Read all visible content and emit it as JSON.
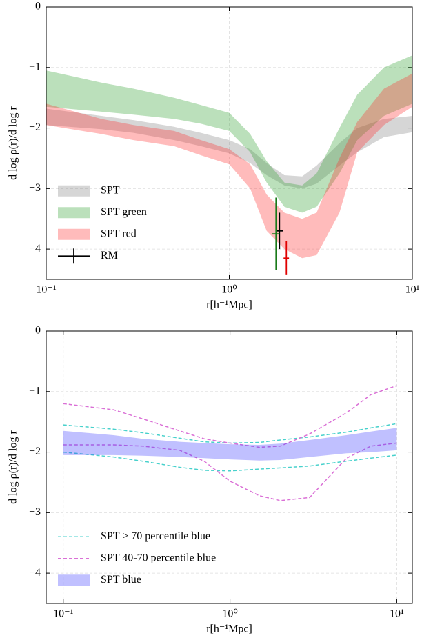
{
  "chart_data": [
    {
      "type": "area",
      "xlabel": "r[h⁻¹Mpc]",
      "ylabel": "d log ρ(r)/d log r",
      "xscale": "log",
      "xlim": [
        0.1,
        10
      ],
      "ylim": [
        -4.5,
        0
      ],
      "xticks": [
        {
          "value": 0.1,
          "label": "10⁻¹"
        },
        {
          "value": 1,
          "label": "10⁰"
        },
        {
          "value": 10,
          "label": "10¹"
        }
      ],
      "yticks": [
        0,
        {
          "value": -1,
          "label": "−1"
        },
        {
          "value": -2,
          "label": "−2"
        },
        {
          "value": -3,
          "label": "−3"
        },
        {
          "value": -4,
          "label": "−4"
        }
      ],
      "grid": true,
      "legend": "lower left",
      "series": [
        {
          "name": "SPT",
          "style": "band",
          "color": "#7f7f7f",
          "x": [
            0.1,
            0.2,
            0.3,
            0.5,
            0.7,
            1,
            1.3,
            1.6,
            2,
            2.5,
            3,
            4,
            5,
            7,
            10
          ],
          "lower": [
            -1.95,
            -2.02,
            -2.08,
            -2.2,
            -2.3,
            -2.42,
            -2.58,
            -2.78,
            -2.95,
            -3.0,
            -2.92,
            -2.62,
            -2.4,
            -2.15,
            -2.07
          ],
          "upper": [
            -1.68,
            -1.8,
            -1.87,
            -1.98,
            -2.08,
            -2.2,
            -2.35,
            -2.58,
            -2.78,
            -2.8,
            -2.62,
            -2.25,
            -2.0,
            -1.85,
            -1.8
          ]
        },
        {
          "name": "SPT green",
          "style": "band",
          "color": "#2ca02c",
          "x": [
            0.1,
            0.2,
            0.3,
            0.5,
            0.7,
            1,
            1.3,
            1.6,
            2,
            2.5,
            3,
            4,
            5,
            7,
            10
          ],
          "lower": [
            -1.65,
            -1.73,
            -1.78,
            -1.85,
            -1.93,
            -2.05,
            -2.4,
            -2.9,
            -3.3,
            -3.4,
            -3.3,
            -2.75,
            -2.2,
            -1.8,
            -1.6
          ],
          "upper": [
            -1.05,
            -1.25,
            -1.35,
            -1.5,
            -1.62,
            -1.75,
            -2.1,
            -2.55,
            -2.9,
            -2.95,
            -2.75,
            -2.0,
            -1.45,
            -1.0,
            -0.8
          ]
        },
        {
          "name": "SPT red",
          "style": "band",
          "color": "#ff2a2a",
          "x": [
            0.1,
            0.2,
            0.3,
            0.5,
            0.7,
            1,
            1.3,
            1.6,
            2,
            2.5,
            3,
            4,
            5,
            7,
            10
          ],
          "lower": [
            -1.95,
            -2.1,
            -2.2,
            -2.3,
            -2.45,
            -2.6,
            -3.0,
            -3.7,
            -4.0,
            -4.15,
            -4.1,
            -3.4,
            -2.4,
            -1.95,
            -1.65
          ],
          "upper": [
            -1.6,
            -1.85,
            -1.95,
            -2.05,
            -2.2,
            -2.35,
            -2.6,
            -3.1,
            -3.4,
            -3.5,
            -3.4,
            -2.5,
            -1.9,
            -1.35,
            -1.1
          ]
        },
        {
          "name": "RM",
          "style": "errorbar",
          "color": "#000000",
          "colors": [
            "#000000",
            "#1a7a1a",
            "#e00000"
          ],
          "x": [
            1.88,
            1.8,
            2.05
          ],
          "values": [
            -3.7,
            -3.75,
            -4.15
          ],
          "yerr": [
            0.3,
            0.6,
            0.28
          ],
          "xerr": [
            0.08,
            0.08,
            0.07
          ]
        }
      ]
    },
    {
      "type": "area",
      "xlabel": "r[h⁻¹Mpc]",
      "ylabel": "d log ρ(r)/d log r",
      "xscale": "log",
      "xlim": [
        0.079,
        12.4
      ],
      "ylim": [
        -4.5,
        0
      ],
      "xticks": [
        {
          "value": 0.1,
          "label": "10⁻¹"
        },
        {
          "value": 1,
          "label": "10⁰"
        },
        {
          "value": 10,
          "label": "10¹"
        }
      ],
      "yticks": [
        0,
        {
          "value": -1,
          "label": "−1"
        },
        {
          "value": -2,
          "label": "−2"
        },
        {
          "value": -3,
          "label": "−3"
        },
        {
          "value": -4,
          "label": "−4"
        }
      ],
      "grid": true,
      "legend": "lower left",
      "series": [
        {
          "name": "SPT > 70 percentile blue",
          "style": "dashed",
          "color": "#48d1cc",
          "x": [
            0.1,
            0.2,
            0.3,
            0.5,
            0.7,
            1,
            1.5,
            2,
            3,
            5,
            7,
            10
          ],
          "lower": [
            -2.0,
            -2.08,
            -2.15,
            -2.25,
            -2.3,
            -2.31,
            -2.28,
            -2.26,
            -2.23,
            -2.15,
            -2.1,
            -2.05
          ],
          "upper": [
            -1.55,
            -1.62,
            -1.68,
            -1.77,
            -1.83,
            -1.85,
            -1.84,
            -1.8,
            -1.75,
            -1.67,
            -1.6,
            -1.53
          ]
        },
        {
          "name": "SPT 40-70 percentile blue",
          "style": "dashed",
          "color": "#da70d6",
          "x": [
            0.1,
            0.2,
            0.3,
            0.5,
            0.7,
            1,
            1.5,
            2,
            3,
            5,
            7,
            10
          ],
          "lower": [
            -1.88,
            -1.88,
            -1.9,
            -1.97,
            -2.15,
            -2.48,
            -2.72,
            -2.8,
            -2.75,
            -2.1,
            -1.9,
            -1.85
          ],
          "upper": [
            -1.2,
            -1.3,
            -1.45,
            -1.65,
            -1.78,
            -1.85,
            -1.92,
            -1.9,
            -1.7,
            -1.35,
            -1.05,
            -0.9
          ]
        },
        {
          "name": "SPT blue",
          "style": "band",
          "color": "#3a3aff",
          "x": [
            0.1,
            0.2,
            0.3,
            0.5,
            0.7,
            1,
            1.5,
            2,
            3,
            5,
            7,
            10
          ],
          "lower": [
            -2.05,
            -2.05,
            -2.06,
            -2.08,
            -2.1,
            -2.12,
            -2.14,
            -2.13,
            -2.08,
            -2.02,
            -2.0,
            -1.97
          ],
          "upper": [
            -1.65,
            -1.72,
            -1.78,
            -1.83,
            -1.85,
            -1.87,
            -1.88,
            -1.86,
            -1.8,
            -1.72,
            -1.66,
            -1.6
          ]
        }
      ]
    }
  ]
}
